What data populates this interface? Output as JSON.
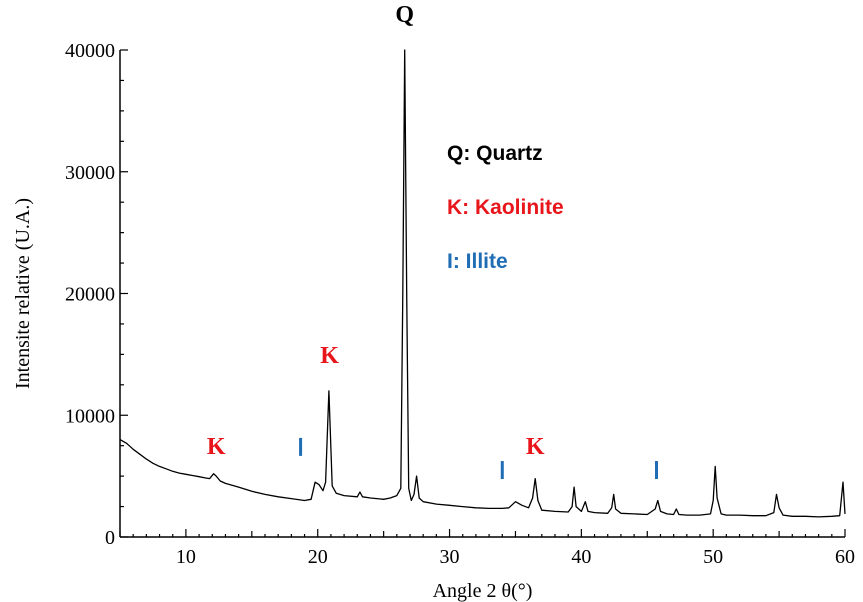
{
  "chart_data": {
    "type": "line",
    "title": "",
    "xlabel": "Angle 2 θ(°)",
    "ylabel": "Intensite relative (U.A.)",
    "xlim": [
      5,
      60
    ],
    "ylim": [
      0,
      40000
    ],
    "x_ticks": [
      10,
      20,
      30,
      40,
      50,
      60
    ],
    "x_tick_labels": [
      "10",
      "20",
      "30",
      "40",
      "50",
      "60"
    ],
    "y_ticks": [
      0,
      10000,
      20000,
      30000,
      40000
    ],
    "y_tick_labels": [
      "0",
      "10000",
      "20000",
      "30000",
      "40000"
    ],
    "grid": false,
    "legend_position": "top-right",
    "legend": [
      {
        "label": "Q: Quartz",
        "color": "#000000"
      },
      {
        "label": "K: Kaolinite",
        "color": "#e8151b"
      },
      {
        "label": "I: Illite",
        "color": "#1f6db5"
      }
    ],
    "line_color": "#000000",
    "series": [
      {
        "values": [
          [
            5.0,
            8000
          ],
          [
            5.5,
            7700
          ],
          [
            6.0,
            7200
          ],
          [
            6.5,
            6800
          ],
          [
            7.0,
            6400
          ],
          [
            7.5,
            6050
          ],
          [
            8.0,
            5800
          ],
          [
            8.5,
            5600
          ],
          [
            9.0,
            5400
          ],
          [
            9.5,
            5250
          ],
          [
            10.0,
            5150
          ],
          [
            10.5,
            5050
          ],
          [
            11.0,
            4950
          ],
          [
            11.5,
            4850
          ],
          [
            11.8,
            4800
          ],
          [
            12.1,
            5200
          ],
          [
            12.3,
            5000
          ],
          [
            12.6,
            4600
          ],
          [
            13.0,
            4400
          ],
          [
            14.0,
            4100
          ],
          [
            15.0,
            3750
          ],
          [
            16.0,
            3500
          ],
          [
            17.0,
            3300
          ],
          [
            18.0,
            3150
          ],
          [
            19.0,
            3000
          ],
          [
            19.5,
            3100
          ],
          [
            19.8,
            4500
          ],
          [
            20.1,
            4300
          ],
          [
            20.4,
            3800
          ],
          [
            20.6,
            4500
          ],
          [
            20.85,
            12000
          ],
          [
            21.1,
            4200
          ],
          [
            21.4,
            3600
          ],
          [
            22.0,
            3400
          ],
          [
            23.0,
            3300
          ],
          [
            23.2,
            3700
          ],
          [
            23.4,
            3300
          ],
          [
            24.0,
            3200
          ],
          [
            25.0,
            3100
          ],
          [
            25.5,
            3200
          ],
          [
            26.0,
            3400
          ],
          [
            26.3,
            4000
          ],
          [
            26.45,
            20000
          ],
          [
            26.6,
            40000
          ],
          [
            26.75,
            20000
          ],
          [
            26.9,
            4000
          ],
          [
            27.1,
            3000
          ],
          [
            27.3,
            3500
          ],
          [
            27.5,
            5000
          ],
          [
            27.7,
            3200
          ],
          [
            28.0,
            2900
          ],
          [
            29.0,
            2700
          ],
          [
            30.0,
            2600
          ],
          [
            31.0,
            2500
          ],
          [
            32.0,
            2400
          ],
          [
            33.0,
            2350
          ],
          [
            34.0,
            2350
          ],
          [
            34.5,
            2400
          ],
          [
            35.0,
            2900
          ],
          [
            35.5,
            2600
          ],
          [
            36.0,
            2400
          ],
          [
            36.3,
            3200
          ],
          [
            36.5,
            4800
          ],
          [
            36.7,
            3000
          ],
          [
            37.0,
            2200
          ],
          [
            38.0,
            2100
          ],
          [
            39.0,
            2050
          ],
          [
            39.3,
            2500
          ],
          [
            39.45,
            4100
          ],
          [
            39.6,
            2500
          ],
          [
            40.0,
            2100
          ],
          [
            40.3,
            2900
          ],
          [
            40.5,
            2100
          ],
          [
            41.0,
            2000
          ],
          [
            42.0,
            1950
          ],
          [
            42.3,
            2400
          ],
          [
            42.45,
            3500
          ],
          [
            42.6,
            2300
          ],
          [
            43.0,
            1950
          ],
          [
            44.0,
            1900
          ],
          [
            45.0,
            1850
          ],
          [
            45.6,
            2300
          ],
          [
            45.8,
            3000
          ],
          [
            46.0,
            2100
          ],
          [
            46.5,
            1900
          ],
          [
            47.0,
            1850
          ],
          [
            47.2,
            2300
          ],
          [
            47.4,
            1850
          ],
          [
            48.0,
            1800
          ],
          [
            49.0,
            1800
          ],
          [
            49.8,
            1900
          ],
          [
            50.0,
            3000
          ],
          [
            50.15,
            5800
          ],
          [
            50.3,
            3200
          ],
          [
            50.6,
            1900
          ],
          [
            51.0,
            1800
          ],
          [
            52.0,
            1800
          ],
          [
            53.0,
            1750
          ],
          [
            54.0,
            1750
          ],
          [
            54.6,
            2000
          ],
          [
            54.8,
            3500
          ],
          [
            55.0,
            2400
          ],
          [
            55.3,
            1800
          ],
          [
            56.0,
            1700
          ],
          [
            57.0,
            1700
          ],
          [
            58.0,
            1650
          ],
          [
            59.0,
            1700
          ],
          [
            59.6,
            1750
          ],
          [
            59.85,
            4500
          ],
          [
            60.0,
            1900
          ]
        ]
      }
    ],
    "annotations": [
      {
        "text": "Q",
        "x": 26.6,
        "y": 42300,
        "color": "#000000",
        "kind": "letter"
      },
      {
        "text": "K",
        "x": 12.3,
        "y": 6800,
        "color": "#e8151b",
        "kind": "letter"
      },
      {
        "text": "K",
        "x": 20.9,
        "y": 14300,
        "color": "#e8151b",
        "kind": "letter"
      },
      {
        "text": "K",
        "x": 36.5,
        "y": 6800,
        "color": "#e8151b",
        "kind": "letter"
      },
      {
        "x": 18.7,
        "y": 7400,
        "color": "#1f6db5",
        "kind": "illite-mark"
      },
      {
        "x": 34.0,
        "y": 5500,
        "color": "#1f6db5",
        "kind": "illite-mark"
      },
      {
        "x": 45.7,
        "y": 5500,
        "color": "#1f6db5",
        "kind": "illite-mark"
      }
    ]
  }
}
